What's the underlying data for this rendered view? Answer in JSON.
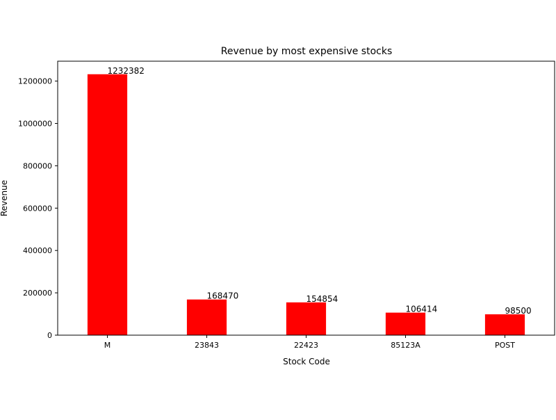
{
  "chart_data": {
    "type": "bar",
    "title": "Revenue by most expensive stocks",
    "xlabel": "Stock Code",
    "ylabel": "Revenue",
    "categories": [
      "M",
      "23843",
      "22423",
      "85123A",
      "POST"
    ],
    "values": [
      1232382,
      168470,
      154854,
      106414,
      98500
    ],
    "data_labels": [
      "1232382",
      "168470",
      "154854",
      "106414",
      "98500"
    ],
    "ylim": [
      0,
      1293999
    ],
    "yticks": [
      0,
      200000,
      400000,
      600000,
      800000,
      1000000,
      1200000
    ],
    "ytick_labels": [
      "0",
      "200000",
      "400000",
      "600000",
      "800000",
      "1000000",
      "1200000"
    ],
    "bar_color": "#ff0000",
    "grid": false,
    "legend": "none"
  }
}
